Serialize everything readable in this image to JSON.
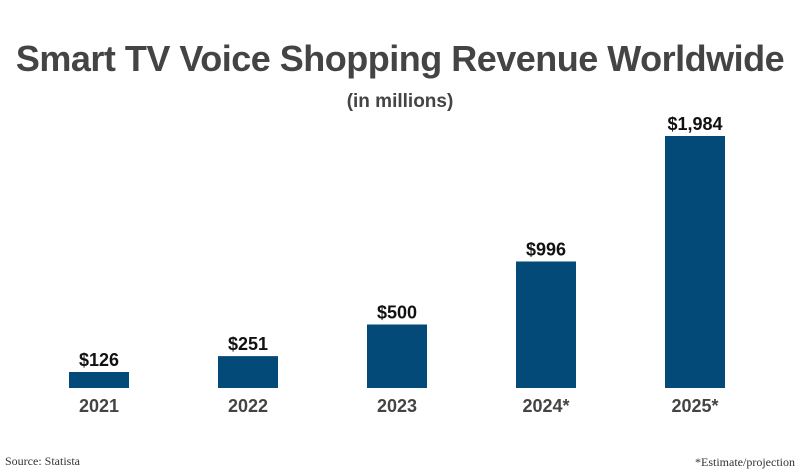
{
  "chart_data": {
    "type": "bar",
    "title": "Smart TV Voice Shopping Revenue Worldwide",
    "subtitle": "(in millions)",
    "categories": [
      "2021",
      "2022",
      "2023",
      "2024*",
      "2025*"
    ],
    "values": [
      126,
      251,
      500,
      996,
      1984
    ],
    "data_labels": [
      "$126",
      "$251",
      "$500",
      "$996",
      "$1,984"
    ],
    "xlabel": "",
    "ylabel": "",
    "ylim": [
      0,
      1984
    ],
    "grid": false,
    "bar_color": "#034a78"
  },
  "footer": {
    "source": "Source: Statista",
    "note": "*Estimate/projection"
  }
}
